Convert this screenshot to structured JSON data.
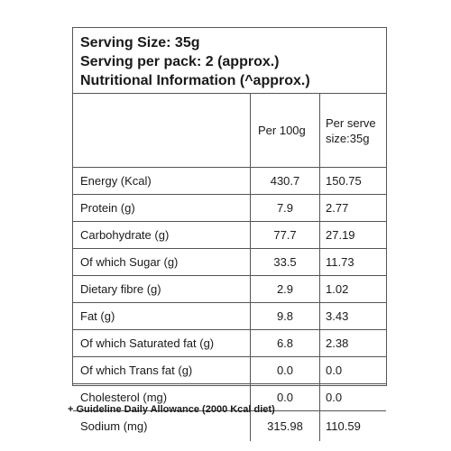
{
  "header": {
    "serving_size": "Serving Size: 35g",
    "serving_per_pack": "Serving per pack: 2 (approx.)",
    "title": "Nutritional Information (^approx.)"
  },
  "table": {
    "columns": [
      "",
      "Per 100g",
      "Per serve size:35g"
    ],
    "col2_header": "Per 100g",
    "col3_header_line1": "Per serve",
    "col3_header_line2": "size:35g",
    "rows": [
      {
        "nutrient": "Energy (Kcal)",
        "per100g": "430.7",
        "perServe": "150.75"
      },
      {
        "nutrient": "Protein (g)",
        "per100g": "7.9",
        "perServe": "2.77"
      },
      {
        "nutrient": "Carbohydrate (g)",
        "per100g": "77.7",
        "perServe": "27.19"
      },
      {
        "nutrient": "Of which Sugar (g)",
        "per100g": "33.5",
        "perServe": "11.73"
      },
      {
        "nutrient": "Dietary fibre (g)",
        "per100g": "2.9",
        "perServe": "1.02"
      },
      {
        "nutrient": "Fat (g)",
        "per100g": "9.8",
        "perServe": "3.43"
      },
      {
        "nutrient": "Of which Saturated fat (g)",
        "per100g": "6.8",
        "perServe": "2.38"
      },
      {
        "nutrient": "Of which Trans fat (g)",
        "per100g": "0.0",
        "perServe": "0.0"
      },
      {
        "nutrient": "Cholesterol (mg)",
        "per100g": "0.0",
        "perServe": "0.0"
      },
      {
        "nutrient": "Sodium (mg)",
        "per100g": "315.98",
        "perServe": "110.59"
      }
    ]
  },
  "footnote": "+ Guideline Daily Allowance (2000 Kcal diet)"
}
